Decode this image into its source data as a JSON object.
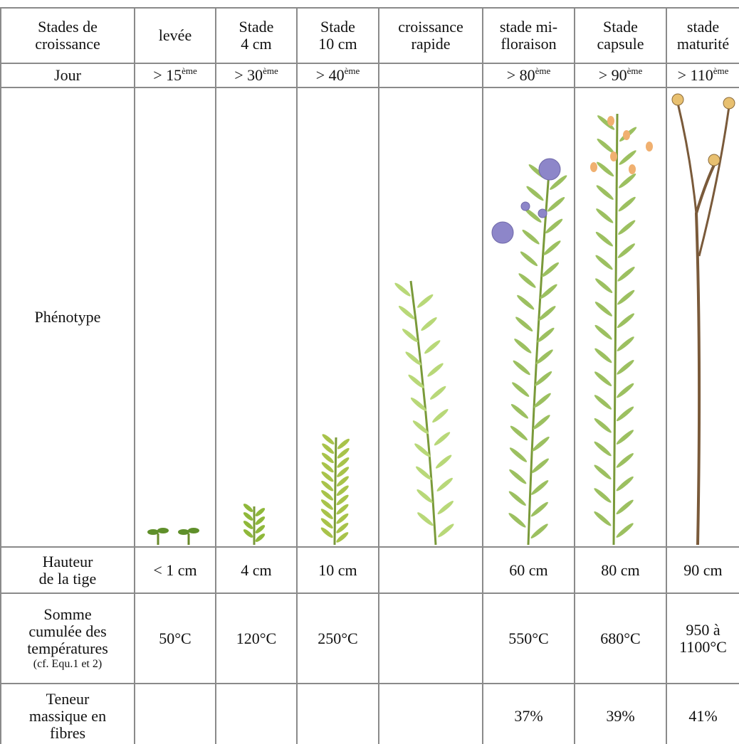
{
  "table": {
    "columns": [
      "Stades de\ncroissance",
      "levée",
      "Stade\n4 cm",
      "Stade\n10 cm",
      "croissance\nrapide",
      "stade mi-\nfloraison",
      "Stade\ncapsule",
      "stade\nmaturité"
    ],
    "rows": [
      {
        "label": "Jour",
        "cells": [
          {
            "text": "> 15",
            "sup": "ème"
          },
          {
            "text": "> 30",
            "sup": "ème"
          },
          {
            "text": "> 40",
            "sup": "ème"
          },
          null,
          {
            "text": "> 80",
            "sup": "ème"
          },
          {
            "text": "> 90",
            "sup": "ème"
          },
          {
            "text": "> 110",
            "sup": "ème"
          }
        ]
      },
      {
        "label": "Phénotype"
      },
      {
        "label": "Hauteur\nde la tige",
        "cells": [
          "< 1 cm",
          "4 cm",
          "10 cm",
          null,
          "60 cm",
          "80 cm",
          "90 cm"
        ]
      },
      {
        "label": "Somme\ncumulée des\ntempératures",
        "note": "(cf. Equ.1 et 2)",
        "cells": [
          "50°C",
          "120°C",
          "250°C",
          null,
          "550°C",
          "680°C",
          "950 à\n1100°C"
        ]
      },
      {
        "label": "Teneur\nmassique en\nfibres",
        "cells": [
          null,
          null,
          null,
          null,
          "37%",
          "39%",
          "41%"
        ]
      }
    ]
  }
}
